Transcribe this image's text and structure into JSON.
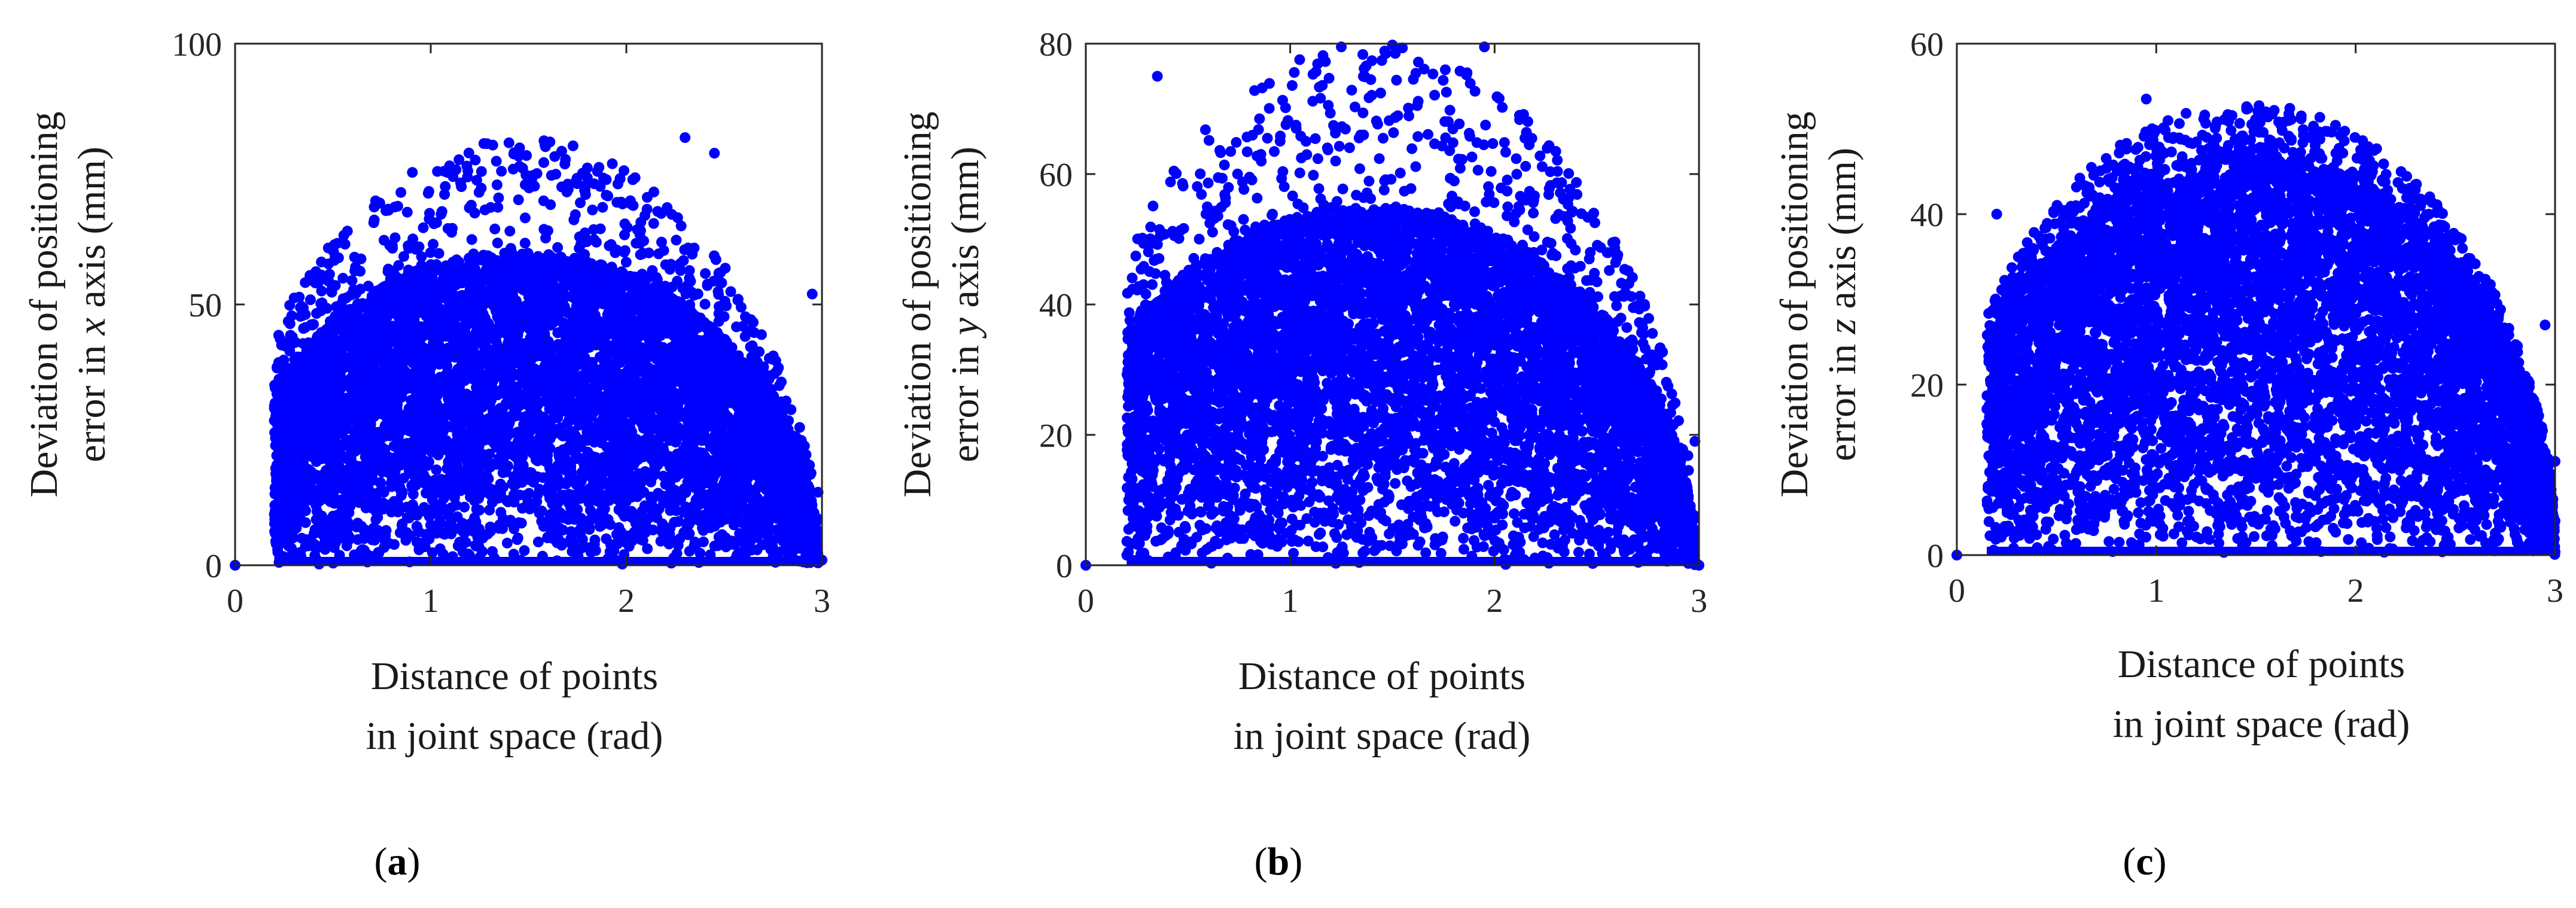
{
  "figure": {
    "panels": [
      {
        "label_open": "(",
        "label_letter": "a",
        "label_close": ")"
      },
      {
        "label_open": "(",
        "label_letter": "b",
        "label_close": ")"
      },
      {
        "label_open": "(",
        "label_letter": "c",
        "label_close": ")"
      }
    ],
    "marker_color": "#0000ff",
    "axes_color": "#262626"
  },
  "chart_data": [
    {
      "type": "scatter",
      "xlabel_line1": "Distance of points",
      "xlabel_line2": "in joint space (rad)",
      "ylabel_line1": "Deviation of positioning",
      "ylabel_line2_pre": "error in ",
      "ylabel_line2_var": "x",
      "ylabel_line2_post": " axis (mm)",
      "xlim": [
        0,
        3
      ],
      "ylim": [
        0,
        100
      ],
      "xticks": [
        0,
        1,
        2,
        3
      ],
      "yticks": [
        0,
        50,
        100
      ],
      "grid": false,
      "envelope": {
        "x_start": 0.2,
        "x_end": 2.98,
        "peak_x": 1.45,
        "peak_y": 60,
        "outlier_max_y": 82
      },
      "highlighted_points": [
        {
          "x": 0,
          "y": 0
        },
        {
          "x": 1.4,
          "y": 81
        },
        {
          "x": 2.3,
          "y": 82
        },
        {
          "x": 2.45,
          "y": 79
        },
        {
          "x": 2.95,
          "y": 52
        },
        {
          "x": 2.98,
          "y": 14
        },
        {
          "x": 3.0,
          "y": 1
        }
      ]
    },
    {
      "type": "scatter",
      "xlabel_line1": "Distance of points",
      "xlabel_line2": "in joint space (rad)",
      "ylabel_line1": "Deviation of positioning",
      "ylabel_line2_pre": "error in ",
      "ylabel_line2_var": "y",
      "ylabel_line2_post": " axis (mm)",
      "xlim": [
        0,
        3
      ],
      "ylim": [
        0,
        80
      ],
      "xticks": [
        0,
        1,
        2,
        3
      ],
      "yticks": [
        0,
        20,
        40,
        60,
        80
      ],
      "grid": false,
      "envelope": {
        "x_start": 0.2,
        "x_end": 2.98,
        "peak_x": 1.4,
        "peak_y": 55,
        "outlier_max_y": 80
      },
      "highlighted_points": [
        {
          "x": 0,
          "y": 0
        },
        {
          "x": 0.35,
          "y": 75
        },
        {
          "x": 1.25,
          "y": 79.5
        },
        {
          "x": 1.5,
          "y": 79.8
        },
        {
          "x": 1.95,
          "y": 79.5
        },
        {
          "x": 2.98,
          "y": 19
        },
        {
          "x": 3.0,
          "y": 0
        }
      ]
    },
    {
      "type": "scatter",
      "xlabel_line1": "Distance of points",
      "xlabel_line2": "in joint space (rad)",
      "ylabel_line1": "Deviation of positioning",
      "ylabel_line2_pre": "error in ",
      "ylabel_line2_var": "z",
      "ylabel_line2_post": " axis (mm)",
      "xlim": [
        0,
        3
      ],
      "ylim": [
        0,
        60
      ],
      "xticks": [
        0,
        1,
        2,
        3
      ],
      "yticks": [
        0,
        20,
        40,
        60
      ],
      "grid": false,
      "envelope": {
        "x_start": 0.15,
        "x_end": 3.0,
        "peak_x": 1.45,
        "peak_y": 47,
        "outlier_max_y": 53
      },
      "highlighted_points": [
        {
          "x": 0,
          "y": 0
        },
        {
          "x": 0.2,
          "y": 40
        },
        {
          "x": 0.95,
          "y": 53.5
        },
        {
          "x": 1.55,
          "y": 52
        },
        {
          "x": 2.95,
          "y": 27
        },
        {
          "x": 3.0,
          "y": 11
        },
        {
          "x": 3.0,
          "y": 4
        }
      ]
    }
  ]
}
